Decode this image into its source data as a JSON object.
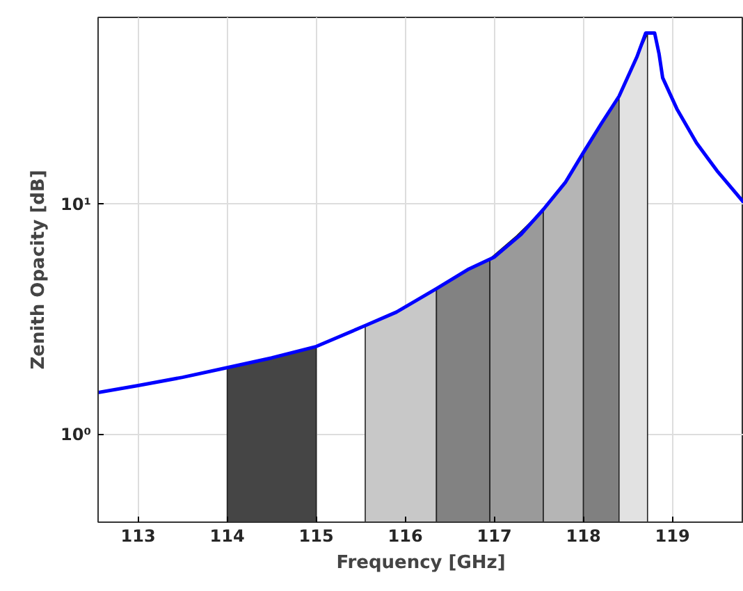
{
  "chart_data": {
    "type": "line",
    "xlabel": "Frequency [GHz]",
    "ylabel": "Zenith Opacity [dB]",
    "log": "y",
    "grid": true,
    "xlim": [
      112.55,
      119.8
    ],
    "ylim": [
      0.415,
      65
    ],
    "xticks": [
      113,
      114,
      115,
      116,
      117,
      118,
      119
    ],
    "yticks": [
      {
        "value": 1,
        "label": "10⁰"
      },
      {
        "value": 10,
        "label": "10¹"
      }
    ],
    "series": [
      {
        "type": "area",
        "color": "#454545",
        "x": [
          114.0,
          114.5,
          115.0
        ],
        "values": [
          1.95,
          2.15,
          2.41
        ]
      },
      {
        "type": "area",
        "color": "#c8c8c8",
        "x": [
          115.55,
          115.9,
          116.35
        ],
        "values": [
          2.97,
          3.4,
          4.3
        ]
      },
      {
        "type": "area",
        "color": "#828282",
        "x": [
          116.35,
          116.7,
          116.95
        ],
        "values": [
          4.3,
          5.2,
          5.8
        ]
      },
      {
        "type": "area",
        "color": "#9a9a9a",
        "x": [
          116.95,
          117.25,
          117.55
        ],
        "values": [
          5.8,
          7.3,
          9.5
        ]
      },
      {
        "type": "area",
        "color": "#b5b5b5",
        "x": [
          117.55,
          117.8,
          118.0
        ],
        "values": [
          9.5,
          12.5,
          16.8
        ]
      },
      {
        "type": "area",
        "color": "#808080",
        "x": [
          118.0,
          118.2,
          118.4
        ],
        "values": [
          16.8,
          22.4,
          29.5
        ]
      },
      {
        "type": "area",
        "color": "#e2e2e2",
        "x": [
          118.4,
          118.6,
          118.72
        ],
        "values": [
          29.5,
          43.7,
          55
        ]
      },
      {
        "color": "#0000ff",
        "x": [
          112.55,
          113.0,
          113.5,
          114.0,
          114.5,
          115.0,
          115.55,
          115.9,
          116.35,
          116.7,
          117.0,
          117.3,
          117.55,
          117.8,
          118.0,
          118.2,
          118.4,
          118.6,
          118.7,
          118.8,
          118.85,
          118.89,
          119.05,
          119.27,
          119.5,
          119.8
        ],
        "values": [
          1.52,
          1.63,
          1.77,
          1.95,
          2.15,
          2.41,
          2.97,
          3.4,
          4.3,
          5.2,
          5.9,
          7.4,
          9.5,
          12.5,
          16.8,
          22.4,
          29.5,
          43.7,
          55.6,
          55.6,
          45,
          35.5,
          26,
          18.5,
          14,
          10.2
        ]
      }
    ]
  }
}
